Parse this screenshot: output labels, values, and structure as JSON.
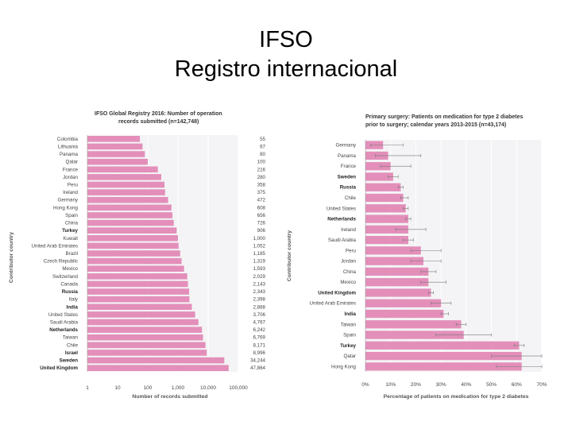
{
  "slide": {
    "title_line1": "IFSO",
    "title_line2": "Registro internacional"
  },
  "chart_data": [
    {
      "type": "bar",
      "orientation": "horizontal",
      "title_line1": "IFSO Global Registry 2016: Number of operation",
      "title_line2": "records submitted (n=142,748)",
      "xlabel": "Number of records submitted",
      "ylabel": "Contributor country",
      "xscale": "log",
      "xlim": [
        1,
        100000
      ],
      "xticks": [
        "1",
        "10",
        "100",
        "1,000",
        "10,000",
        "100,000"
      ],
      "bar_color": "#e38fba",
      "categories": [
        "Colombia",
        "Lithuania",
        "Panama",
        "Qatar",
        "France",
        "Jordan",
        "Peru",
        "Ireland",
        "Germany",
        "Hong Kong",
        "Spain",
        "China",
        "Turkey",
        "Kuwait",
        "United Arab Emirates",
        "Brazil",
        "Czech Republic",
        "Mexico",
        "Switzerland",
        "Canada",
        "Russia",
        "Italy",
        "India",
        "United States",
        "Saudi Arabia",
        "Netherlands",
        "Taiwan",
        "Chile",
        "Israel",
        "Sweden",
        "United Kingdom"
      ],
      "bold_categories": [
        "Turkey",
        "Russia",
        "India",
        "Netherlands",
        "Israel",
        "Sweden",
        "United Kingdom"
      ],
      "values": [
        55,
        67,
        80,
        100,
        216,
        280,
        358,
        375,
        472,
        608,
        656,
        726,
        906,
        1000,
        1052,
        1185,
        1319,
        1593,
        2029,
        2143,
        2343,
        2398,
        2888,
        3706,
        4767,
        6242,
        6769,
        8171,
        8996,
        34244,
        47864
      ],
      "value_labels": [
        "55",
        "67",
        "80",
        "100",
        "216",
        "280",
        "358",
        "375",
        "472",
        "608",
        "656",
        "726",
        "906",
        "1,000",
        "1,052",
        "1,185",
        "1,319",
        "1,593",
        "2,029",
        "2,143",
        "2,343",
        "2,398",
        "2,888",
        "3,706",
        "4,767",
        "6,242",
        "6,769",
        "8,171",
        "8,996",
        "34,244",
        "47,864"
      ]
    },
    {
      "type": "bar",
      "orientation": "horizontal",
      "title_line1": "Primary surgery: Patients on medication for type 2 diabetes",
      "title_line2": "prior to surgery; calendar years 2013-2015 (n=43,174)",
      "xlabel": "Percentage of patients on medication for type 2 diabetes",
      "ylabel": "Contributor country",
      "xlim": [
        0,
        70
      ],
      "xticks": [
        "0%",
        "10%",
        "20%",
        "30%",
        "40%",
        "50%",
        "60%",
        "70%"
      ],
      "bar_color": "#e38fba",
      "categories": [
        "Germany",
        "Panama",
        "France",
        "Sweden",
        "Russia",
        "Chile",
        "United States",
        "Netherlands",
        "Ireland",
        "Saudi Arabia",
        "Peru",
        "Jordan",
        "China",
        "Mexico",
        "United Kingdom",
        "United Arab Emirates",
        "India",
        "Taiwan",
        "Spain",
        "Turkey",
        "Qatar",
        "Hong Kong"
      ],
      "bold_categories": [
        "Sweden",
        "Russia",
        "Netherlands",
        "United Kingdom",
        "India",
        "Turkey"
      ],
      "values": [
        7,
        9,
        10,
        11,
        14,
        15,
        16,
        17,
        17,
        17,
        22,
        23,
        25,
        25,
        26,
        30,
        31,
        38,
        39,
        61,
        62,
        62
      ],
      "error_low": [
        2,
        4,
        6,
        9,
        13,
        14,
        15,
        16,
        12,
        15,
        18,
        18,
        22,
        22,
        25,
        26,
        30,
        36,
        28,
        59,
        50,
        52
      ],
      "error_high": [
        15,
        22,
        18,
        13,
        15,
        17,
        17,
        18,
        24,
        19,
        30,
        30,
        28,
        32,
        27,
        34,
        33,
        40,
        50,
        63,
        70,
        70
      ]
    }
  ]
}
